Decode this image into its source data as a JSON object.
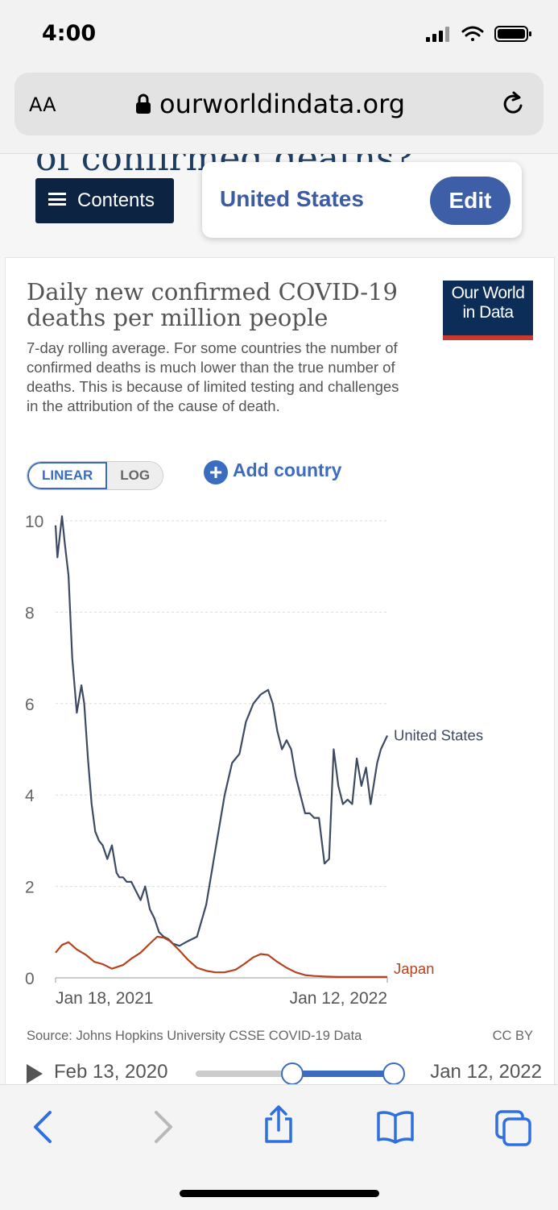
{
  "status_bar": {
    "time": "4:00"
  },
  "browser": {
    "aa_label": "AA",
    "url": "ourworldindata.org"
  },
  "page": {
    "background_title": "of confirmed deaths?",
    "contents_label": "Contents",
    "country_selector": {
      "country": "United States",
      "edit_label": "Edit"
    }
  },
  "chart_card": {
    "title": "Daily new confirmed COVID-19 deaths per million people",
    "subtitle": "7-day rolling average. For some countries the number of confirmed deaths is much lower than the true number of deaths. This is because of limited testing and challenges in the attribution of the cause of death.",
    "logo_line1": "Our World",
    "logo_line2": "in Data",
    "scale_linear": "LINEAR",
    "scale_log": "LOG",
    "add_country": "Add country",
    "source": "Source: Johns Hopkins University CSSE COVID-19 Data",
    "license": "CC BY",
    "timeline_start": "Feb 13, 2020",
    "timeline_end": "Jan 12, 2022",
    "colors": {
      "us": "#3c4b63",
      "japan": "#b3431e",
      "accent": "#3b6cc0"
    }
  },
  "chart_data": {
    "type": "line",
    "title": "Daily new confirmed COVID-19 deaths per million people",
    "xlabel": "",
    "ylabel": "",
    "ylim": [
      0,
      10
    ],
    "y_ticks": [
      "0",
      "2",
      "4",
      "6",
      "8",
      "10"
    ],
    "x_ticks": [
      "Jan 18, 2021",
      "Jan 12, 2022"
    ],
    "grid": true,
    "x_range": [
      "2021-01-18",
      "2022-01-12"
    ],
    "series": [
      {
        "name": "United States",
        "x": [
          "2021-01-18",
          "2021-01-20",
          "2021-01-25",
          "2021-01-28",
          "2021-02-01",
          "2021-02-05",
          "2021-02-10",
          "2021-02-15",
          "2021-02-18",
          "2021-02-22",
          "2021-02-26",
          "2021-03-02",
          "2021-03-06",
          "2021-03-10",
          "2021-03-15",
          "2021-03-20",
          "2021-03-25",
          "2021-03-28",
          "2021-04-01",
          "2021-04-05",
          "2021-04-10",
          "2021-04-15",
          "2021-04-20",
          "2021-04-25",
          "2021-04-30",
          "2021-05-05",
          "2021-05-10",
          "2021-05-15",
          "2021-05-20",
          "2021-05-25",
          "2021-06-01",
          "2021-06-10",
          "2021-06-20",
          "2021-06-30",
          "2021-07-10",
          "2021-07-20",
          "2021-07-28",
          "2021-08-05",
          "2021-08-12",
          "2021-08-20",
          "2021-08-28",
          "2021-09-05",
          "2021-09-10",
          "2021-09-15",
          "2021-09-20",
          "2021-09-25",
          "2021-09-30",
          "2021-10-05",
          "2021-10-10",
          "2021-10-15",
          "2021-10-20",
          "2021-10-25",
          "2021-10-30",
          "2021-11-05",
          "2021-11-10",
          "2021-11-15",
          "2021-11-20",
          "2021-11-25",
          "2021-11-30",
          "2021-12-05",
          "2021-12-10",
          "2021-12-15",
          "2021-12-20",
          "2021-12-25",
          "2022-01-01",
          "2022-01-05",
          "2022-01-12"
        ],
        "values": [
          9.9,
          9.2,
          10.1,
          9.5,
          8.8,
          7.0,
          5.8,
          6.4,
          6.0,
          4.8,
          3.8,
          3.2,
          3.0,
          2.9,
          2.6,
          2.9,
          2.3,
          2.2,
          2.2,
          2.1,
          2.1,
          1.9,
          1.7,
          2.0,
          1.5,
          1.3,
          1.0,
          0.9,
          0.85,
          0.75,
          0.7,
          0.8,
          0.9,
          1.6,
          2.8,
          4.0,
          4.7,
          4.9,
          5.6,
          6.0,
          6.2,
          6.3,
          6.0,
          5.4,
          5.0,
          5.2,
          5.0,
          4.4,
          4.0,
          3.6,
          3.6,
          3.5,
          3.5,
          2.5,
          2.6,
          5.0,
          4.2,
          3.8,
          3.9,
          3.8,
          4.8,
          4.2,
          4.6,
          3.8,
          4.7,
          5.0,
          5.3
        ]
      },
      {
        "name": "Japan",
        "x": [
          "2021-01-18",
          "2021-01-25",
          "2021-02-01",
          "2021-02-10",
          "2021-02-20",
          "2021-03-01",
          "2021-03-10",
          "2021-03-20",
          "2021-04-01",
          "2021-04-10",
          "2021-04-20",
          "2021-04-30",
          "2021-05-08",
          "2021-05-15",
          "2021-05-22",
          "2021-06-01",
          "2021-06-10",
          "2021-06-20",
          "2021-07-01",
          "2021-07-10",
          "2021-07-20",
          "2021-08-01",
          "2021-08-10",
          "2021-08-20",
          "2021-08-28",
          "2021-09-05",
          "2021-09-15",
          "2021-09-25",
          "2021-10-05",
          "2021-10-15",
          "2021-10-25",
          "2021-11-05",
          "2021-11-20",
          "2021-12-05",
          "2021-12-20",
          "2022-01-01",
          "2022-01-12"
        ],
        "values": [
          0.55,
          0.72,
          0.78,
          0.62,
          0.5,
          0.35,
          0.3,
          0.2,
          0.28,
          0.42,
          0.55,
          0.75,
          0.9,
          0.88,
          0.8,
          0.6,
          0.4,
          0.22,
          0.15,
          0.12,
          0.12,
          0.18,
          0.3,
          0.45,
          0.52,
          0.5,
          0.35,
          0.22,
          0.12,
          0.06,
          0.04,
          0.03,
          0.02,
          0.02,
          0.02,
          0.02,
          0.02
        ]
      }
    ]
  }
}
